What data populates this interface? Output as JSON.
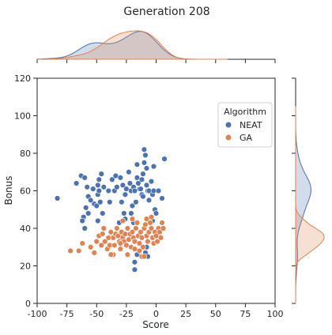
{
  "chart_data": {
    "type": "scatter",
    "title": "Generation 208",
    "xlabel": "Score",
    "ylabel": "Bonus",
    "xlim": [
      -100,
      100
    ],
    "ylim": [
      0,
      120
    ],
    "xticks": [
      -100,
      -75,
      -50,
      -25,
      0,
      25,
      50,
      75,
      100
    ],
    "yticks": [
      0,
      20,
      40,
      60,
      80,
      100,
      120
    ],
    "grid": false,
    "legend": {
      "title": "Algorithm",
      "placement": "top-right"
    },
    "marginals": "kde",
    "series": [
      {
        "name": "NEAT",
        "color": "#4c72b0",
        "points": [
          [
            -83,
            56
          ],
          [
            -67,
            64
          ],
          [
            -63,
            68
          ],
          [
            -60,
            67
          ],
          [
            -58,
            62
          ],
          [
            -57,
            57
          ],
          [
            -59,
            51
          ],
          [
            -61,
            46
          ],
          [
            -62,
            44
          ],
          [
            -60,
            40
          ],
          [
            -53,
            61
          ],
          [
            -52,
            53
          ],
          [
            -55,
            55
          ],
          [
            -50,
            52
          ],
          [
            -49,
            58
          ],
          [
            -48,
            60
          ],
          [
            -49,
            63
          ],
          [
            -48,
            66
          ],
          [
            -46,
            69
          ],
          [
            -44,
            62
          ],
          [
            -47,
            54
          ],
          [
            -45,
            48
          ],
          [
            -49,
            44
          ],
          [
            -40,
            60
          ],
          [
            -37,
            66
          ],
          [
            -35,
            60
          ],
          [
            -33,
            62
          ],
          [
            -34,
            68
          ],
          [
            -30,
            67
          ],
          [
            -28,
            63
          ],
          [
            -29,
            54
          ],
          [
            -26,
            58
          ],
          [
            -25,
            61
          ],
          [
            -23,
            70
          ],
          [
            -22,
            64
          ],
          [
            -21,
            60
          ],
          [
            -20,
            52
          ],
          [
            -19,
            62
          ],
          [
            -18,
            60
          ],
          [
            -17,
            54
          ],
          [
            -16,
            67
          ],
          [
            -16,
            74
          ],
          [
            -15,
            64
          ],
          [
            -14,
            61
          ],
          [
            -13,
            61
          ],
          [
            -12,
            66
          ],
          [
            -11,
            69
          ],
          [
            -12,
            58
          ],
          [
            -11,
            57
          ],
          [
            -10,
            75
          ],
          [
            -10,
            82
          ],
          [
            -9,
            79
          ],
          [
            -8,
            72
          ],
          [
            -8,
            63
          ],
          [
            -7,
            60
          ],
          [
            -6,
            60
          ],
          [
            -6,
            55
          ],
          [
            -4,
            65
          ],
          [
            -3,
            58
          ],
          [
            -2,
            60
          ],
          [
            -2,
            73
          ],
          [
            -1,
            50
          ],
          [
            0,
            48
          ],
          [
            -3,
            44
          ],
          [
            -19,
            43
          ],
          [
            -21,
            48
          ],
          [
            -18,
            22
          ],
          [
            -18,
            18
          ],
          [
            -16,
            26
          ],
          [
            -9,
            27
          ],
          [
            -7,
            25
          ],
          [
            -8,
            30
          ],
          [
            2,
            60
          ],
          [
            5,
            56
          ],
          [
            7,
            77
          ],
          [
            -26,
            45
          ],
          [
            -27,
            48
          ],
          [
            -31,
            43
          ],
          [
            -39,
            54
          ],
          [
            -57,
            48
          ]
        ]
      },
      {
        "name": "GA",
        "color": "#dd8452",
        "points": [
          [
            -72,
            28
          ],
          [
            -65,
            28
          ],
          [
            -62,
            32
          ],
          [
            -55,
            30
          ],
          [
            -52,
            27
          ],
          [
            -50,
            33
          ],
          [
            -48,
            36
          ],
          [
            -46,
            31
          ],
          [
            -45,
            37
          ],
          [
            -43,
            33
          ],
          [
            -41,
            29
          ],
          [
            -40,
            35
          ],
          [
            -39,
            31
          ],
          [
            -38,
            38
          ],
          [
            -36,
            35
          ],
          [
            -35,
            31
          ],
          [
            -34,
            37
          ],
          [
            -33,
            40
          ],
          [
            -32,
            36
          ],
          [
            -31,
            33
          ],
          [
            -30,
            29
          ],
          [
            -29,
            38
          ],
          [
            -28,
            35
          ],
          [
            -27,
            33
          ],
          [
            -26,
            37
          ],
          [
            -25,
            31
          ],
          [
            -24,
            40
          ],
          [
            -23,
            34
          ],
          [
            -22,
            37
          ],
          [
            -21,
            30
          ],
          [
            -20,
            38
          ],
          [
            -19,
            35
          ],
          [
            -18,
            33
          ],
          [
            -17,
            40
          ],
          [
            -16,
            43
          ],
          [
            -15,
            36
          ],
          [
            -14,
            32
          ],
          [
            -13,
            38
          ],
          [
            -12,
            35
          ],
          [
            -11,
            30
          ],
          [
            -10,
            40
          ],
          [
            -9,
            42
          ],
          [
            -8,
            36
          ],
          [
            -7,
            33
          ],
          [
            -6,
            38
          ],
          [
            -5,
            43
          ],
          [
            -4,
            40
          ],
          [
            -3,
            35
          ],
          [
            -2,
            32
          ],
          [
            -1,
            38
          ],
          [
            0,
            36
          ],
          [
            1,
            33
          ],
          [
            2,
            40
          ],
          [
            3,
            38
          ],
          [
            4,
            35
          ],
          [
            5,
            43
          ],
          [
            6,
            40
          ],
          [
            -36,
            26
          ],
          [
            -38,
            26
          ],
          [
            -12,
            25
          ],
          [
            -10,
            25
          ],
          [
            -24,
            26
          ],
          [
            -44,
            40
          ],
          [
            -28,
            44
          ],
          [
            -20,
            45
          ],
          [
            -8,
            45
          ],
          [
            -4,
            46
          ],
          [
            -14,
            28
          ],
          [
            -30,
            32
          ],
          [
            -18,
            29
          ]
        ]
      }
    ]
  }
}
